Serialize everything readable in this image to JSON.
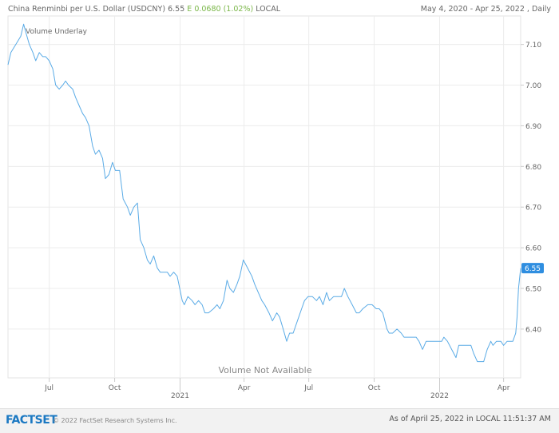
{
  "header": {
    "instrument": "China Renminbi per U.S. Dollar (USDCNY)",
    "price": "6.55",
    "flag": "E",
    "change": "0.0680 (1.02%)",
    "currency": "LOCAL",
    "range": "May 4, 2020 - Apr 25, 2022 , Daily"
  },
  "footer": {
    "logo": "FACTSET",
    "copyright": "© 2022 FactSet Research Systems Inc.",
    "as_of": "As of April 25, 2022 in LOCAL 11:51:37 AM"
  },
  "colors": {
    "line": "#5aabe6",
    "badge": "#2f8ee0",
    "change": "#7ab648",
    "logo": "#1a78c2"
  },
  "chart_data": {
    "type": "line",
    "legend_label": "Volume Underlay",
    "note": "Volume Not Available",
    "ylim": [
      6.28,
      7.17
    ],
    "y_ticks": [
      6.4,
      6.5,
      6.6,
      6.7,
      6.8,
      6.9,
      7.0,
      7.1
    ],
    "y_tick_labels": [
      "6.40",
      "6.50",
      "6.60",
      "6.70",
      "6.80",
      "6.90",
      "7.00",
      "7.10"
    ],
    "x_range": [
      "2020-05-04",
      "2022-04-25"
    ],
    "x_ticks": [
      "2020-07-01",
      "2020-10-01",
      "2021-01-01",
      "2021-04-01",
      "2021-07-01",
      "2021-10-01",
      "2022-01-01",
      "2022-04-01"
    ],
    "x_tick_labels": [
      "Jul",
      "Oct",
      "",
      "Apr",
      "Jul",
      "Oct",
      "",
      "Apr"
    ],
    "year_labels": [
      {
        "date": "2021-01-01",
        "label": "2021"
      },
      {
        "date": "2022-01-01",
        "label": "2022"
      }
    ],
    "last_value": 6.55,
    "last_label": "6.55",
    "grid": true,
    "series": [
      {
        "points": [
          [
            "2020-05-04",
            7.05
          ],
          [
            "2020-05-08",
            7.08
          ],
          [
            "2020-05-15",
            7.1
          ],
          [
            "2020-05-22",
            7.12
          ],
          [
            "2020-05-26",
            7.15
          ],
          [
            "2020-05-29",
            7.13
          ],
          [
            "2020-06-03",
            7.1
          ],
          [
            "2020-06-08",
            7.08
          ],
          [
            "2020-06-12",
            7.06
          ],
          [
            "2020-06-17",
            7.08
          ],
          [
            "2020-06-22",
            7.07
          ],
          [
            "2020-06-26",
            7.07
          ],
          [
            "2020-07-01",
            7.06
          ],
          [
            "2020-07-06",
            7.04
          ],
          [
            "2020-07-10",
            7.0
          ],
          [
            "2020-07-15",
            6.99
          ],
          [
            "2020-07-20",
            7.0
          ],
          [
            "2020-07-24",
            7.01
          ],
          [
            "2020-07-28",
            7.0
          ],
          [
            "2020-08-03",
            6.99
          ],
          [
            "2020-08-07",
            6.97
          ],
          [
            "2020-08-12",
            6.95
          ],
          [
            "2020-08-17",
            6.93
          ],
          [
            "2020-08-21",
            6.92
          ],
          [
            "2020-08-26",
            6.9
          ],
          [
            "2020-08-31",
            6.85
          ],
          [
            "2020-09-04",
            6.83
          ],
          [
            "2020-09-09",
            6.84
          ],
          [
            "2020-09-14",
            6.82
          ],
          [
            "2020-09-18",
            6.77
          ],
          [
            "2020-09-23",
            6.78
          ],
          [
            "2020-09-28",
            6.81
          ],
          [
            "2020-10-02",
            6.79
          ],
          [
            "2020-10-08",
            6.79
          ],
          [
            "2020-10-13",
            6.72
          ],
          [
            "2020-10-19",
            6.7
          ],
          [
            "2020-10-23",
            6.68
          ],
          [
            "2020-10-28",
            6.7
          ],
          [
            "2020-11-02",
            6.71
          ],
          [
            "2020-11-06",
            6.62
          ],
          [
            "2020-11-11",
            6.6
          ],
          [
            "2020-11-16",
            6.57
          ],
          [
            "2020-11-20",
            6.56
          ],
          [
            "2020-11-25",
            6.58
          ],
          [
            "2020-11-30",
            6.55
          ],
          [
            "2020-12-04",
            6.54
          ],
          [
            "2020-12-09",
            6.54
          ],
          [
            "2020-12-14",
            6.54
          ],
          [
            "2020-12-18",
            6.53
          ],
          [
            "2020-12-23",
            6.54
          ],
          [
            "2020-12-28",
            6.53
          ],
          [
            "2021-01-04",
            6.47
          ],
          [
            "2021-01-07",
            6.46
          ],
          [
            "2021-01-12",
            6.48
          ],
          [
            "2021-01-18",
            6.47
          ],
          [
            "2021-01-22",
            6.46
          ],
          [
            "2021-01-27",
            6.47
          ],
          [
            "2021-02-01",
            6.46
          ],
          [
            "2021-02-05",
            6.44
          ],
          [
            "2021-02-10",
            6.44
          ],
          [
            "2021-02-17",
            6.45
          ],
          [
            "2021-02-22",
            6.46
          ],
          [
            "2021-02-26",
            6.45
          ],
          [
            "2021-03-03",
            6.47
          ],
          [
            "2021-03-08",
            6.52
          ],
          [
            "2021-03-12",
            6.5
          ],
          [
            "2021-03-17",
            6.49
          ],
          [
            "2021-03-22",
            6.51
          ],
          [
            "2021-03-26",
            6.53
          ],
          [
            "2021-03-31",
            6.57
          ],
          [
            "2021-04-06",
            6.55
          ],
          [
            "2021-04-12",
            6.53
          ],
          [
            "2021-04-16",
            6.51
          ],
          [
            "2021-04-21",
            6.49
          ],
          [
            "2021-04-26",
            6.47
          ],
          [
            "2021-04-30",
            6.46
          ],
          [
            "2021-05-06",
            6.44
          ],
          [
            "2021-05-11",
            6.42
          ],
          [
            "2021-05-17",
            6.44
          ],
          [
            "2021-05-21",
            6.43
          ],
          [
            "2021-05-26",
            6.4
          ],
          [
            "2021-05-31",
            6.37
          ],
          [
            "2021-06-04",
            6.39
          ],
          [
            "2021-06-09",
            6.39
          ],
          [
            "2021-06-15",
            6.42
          ],
          [
            "2021-06-21",
            6.45
          ],
          [
            "2021-06-25",
            6.47
          ],
          [
            "2021-06-30",
            6.48
          ],
          [
            "2021-07-06",
            6.48
          ],
          [
            "2021-07-12",
            6.47
          ],
          [
            "2021-07-16",
            6.48
          ],
          [
            "2021-07-21",
            6.46
          ],
          [
            "2021-07-26",
            6.49
          ],
          [
            "2021-07-30",
            6.47
          ],
          [
            "2021-08-05",
            6.48
          ],
          [
            "2021-08-10",
            6.48
          ],
          [
            "2021-08-16",
            6.48
          ],
          [
            "2021-08-20",
            6.5
          ],
          [
            "2021-08-25",
            6.48
          ],
          [
            "2021-08-31",
            6.46
          ],
          [
            "2021-09-06",
            6.44
          ],
          [
            "2021-09-10",
            6.44
          ],
          [
            "2021-09-15",
            6.45
          ],
          [
            "2021-09-22",
            6.46
          ],
          [
            "2021-09-28",
            6.46
          ],
          [
            "2021-10-04",
            6.45
          ],
          [
            "2021-10-08",
            6.45
          ],
          [
            "2021-10-13",
            6.44
          ],
          [
            "2021-10-19",
            6.4
          ],
          [
            "2021-10-22",
            6.39
          ],
          [
            "2021-10-27",
            6.39
          ],
          [
            "2021-11-02",
            6.4
          ],
          [
            "2021-11-08",
            6.39
          ],
          [
            "2021-11-12",
            6.38
          ],
          [
            "2021-11-17",
            6.38
          ],
          [
            "2021-11-23",
            6.38
          ],
          [
            "2021-11-29",
            6.38
          ],
          [
            "2021-12-03",
            6.37
          ],
          [
            "2021-12-08",
            6.35
          ],
          [
            "2021-12-13",
            6.37
          ],
          [
            "2021-12-17",
            6.37
          ],
          [
            "2021-12-22",
            6.37
          ],
          [
            "2021-12-28",
            6.37
          ],
          [
            "2022-01-04",
            6.37
          ],
          [
            "2022-01-07",
            6.38
          ],
          [
            "2022-01-12",
            6.37
          ],
          [
            "2022-01-18",
            6.35
          ],
          [
            "2022-01-24",
            6.33
          ],
          [
            "2022-01-28",
            6.36
          ],
          [
            "2022-02-03",
            6.36
          ],
          [
            "2022-02-09",
            6.36
          ],
          [
            "2022-02-14",
            6.36
          ],
          [
            "2022-02-18",
            6.34
          ],
          [
            "2022-02-23",
            6.32
          ],
          [
            "2022-02-28",
            6.32
          ],
          [
            "2022-03-04",
            6.32
          ],
          [
            "2022-03-09",
            6.35
          ],
          [
            "2022-03-14",
            6.37
          ],
          [
            "2022-03-17",
            6.36
          ],
          [
            "2022-03-22",
            6.37
          ],
          [
            "2022-03-28",
            6.37
          ],
          [
            "2022-04-01",
            6.36
          ],
          [
            "2022-04-06",
            6.37
          ],
          [
            "2022-04-11",
            6.37
          ],
          [
            "2022-04-14",
            6.37
          ],
          [
            "2022-04-18",
            6.39
          ],
          [
            "2022-04-20",
            6.43
          ],
          [
            "2022-04-22",
            6.5
          ],
          [
            "2022-04-25",
            6.55
          ]
        ]
      }
    ]
  }
}
